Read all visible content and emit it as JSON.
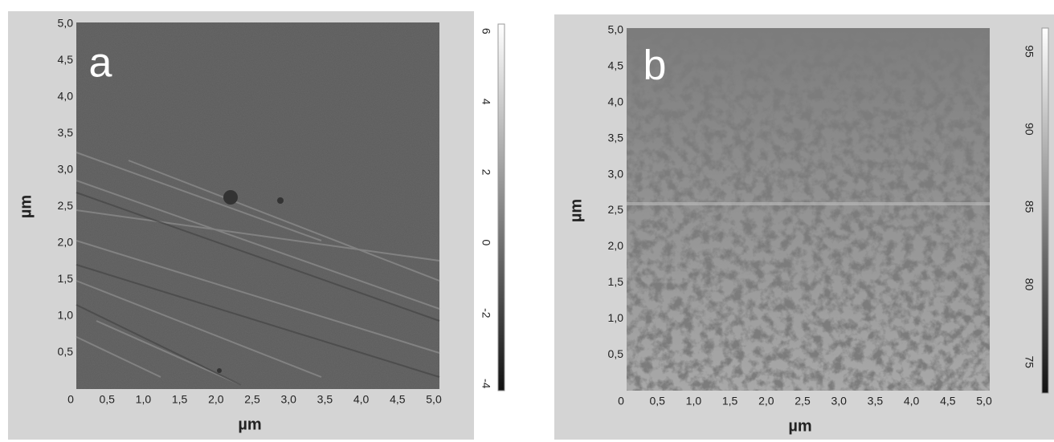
{
  "chart_data": [
    {
      "type": "image",
      "label": "a",
      "xlabel": "µm",
      "ylabel": "µm",
      "xlim": [
        0,
        5
      ],
      "ylim": [
        0,
        5
      ],
      "xticks": [
        0,
        {
          "value": 0.5,
          "label": "0,5"
        },
        {
          "value": 1,
          "label": "1,0"
        },
        {
          "value": 1.5,
          "label": "1,5"
        },
        {
          "value": 2,
          "label": "2,0"
        },
        {
          "value": 2.5,
          "label": "2,5"
        },
        {
          "value": 3,
          "label": "3,0"
        },
        {
          "value": 3.5,
          "label": "3,5"
        },
        {
          "value": 4,
          "label": "4,0"
        },
        {
          "value": 4.5,
          "label": "4,5"
        },
        {
          "value": 5,
          "label": "5,0"
        }
      ],
      "yticks": [
        {
          "value": 0.5,
          "label": "0,5"
        },
        {
          "value": 1,
          "label": "1,0"
        },
        {
          "value": 1.5,
          "label": "1,5"
        },
        {
          "value": 2,
          "label": "2,0"
        },
        {
          "value": 2.5,
          "label": "2,5"
        },
        {
          "value": 3,
          "label": "3,0"
        },
        {
          "value": 3.5,
          "label": "3,5"
        },
        {
          "value": 4,
          "label": "4,0"
        },
        {
          "value": 4.5,
          "label": "4,5"
        },
        {
          "value": 5,
          "label": "5,0"
        }
      ],
      "clim": [
        -4.2,
        6.2
      ],
      "cticks": [
        -4,
        -2,
        0,
        2,
        4,
        6
      ]
    },
    {
      "type": "image",
      "label": "b",
      "xlabel": "µm",
      "ylabel": "µm",
      "xlim": [
        0,
        5
      ],
      "ylim": [
        0,
        5
      ],
      "xticks": [
        0,
        {
          "value": 0.5,
          "label": "0,5"
        },
        {
          "value": 1,
          "label": "1,0"
        },
        {
          "value": 1.5,
          "label": "1,5"
        },
        {
          "value": 2,
          "label": "2,0"
        },
        {
          "value": 2.5,
          "label": "2,5"
        },
        {
          "value": 3,
          "label": "3,0"
        },
        {
          "value": 3.5,
          "label": "3,5"
        },
        {
          "value": 4,
          "label": "4,0"
        },
        {
          "value": 4.5,
          "label": "4,5"
        },
        {
          "value": 5,
          "label": "5,0"
        }
      ],
      "yticks": [
        {
          "value": 0.5,
          "label": "0,5"
        },
        {
          "value": 1,
          "label": "1,0"
        },
        {
          "value": 1.5,
          "label": "1,5"
        },
        {
          "value": 2,
          "label": "2,0"
        },
        {
          "value": 2.5,
          "label": "2,5"
        },
        {
          "value": 3,
          "label": "3,0"
        },
        {
          "value": 3.5,
          "label": "3,5"
        },
        {
          "value": 4,
          "label": "4,0"
        },
        {
          "value": 4.5,
          "label": "4,5"
        },
        {
          "value": 5,
          "label": "5,0"
        }
      ],
      "clim": [
        73,
        96.5
      ],
      "cticks": [
        75,
        80,
        85,
        90,
        95
      ]
    }
  ]
}
